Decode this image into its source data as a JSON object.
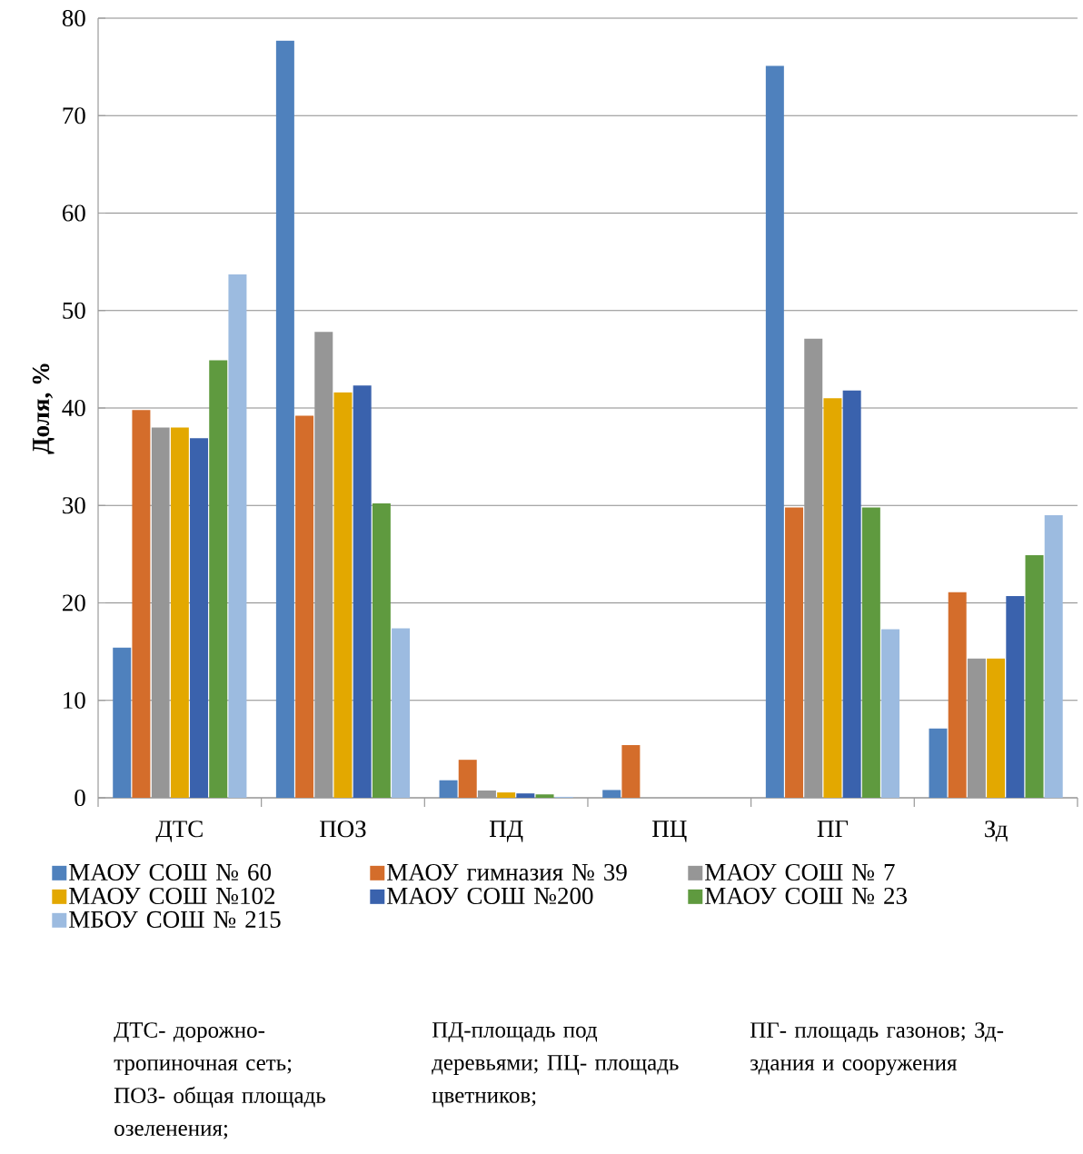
{
  "chart_data": {
    "type": "bar",
    "ylabel": "Доля, %",
    "categories": [
      "ДТС",
      "ПОЗ",
      "ПД",
      "ПЦ",
      "ПГ",
      "Зд"
    ],
    "series": [
      {
        "name": "МАОУ СОШ № 60",
        "color": "#4f81bd",
        "values": [
          15.4,
          77.7,
          1.8,
          0.8,
          75.1,
          7.1
        ]
      },
      {
        "name": "МАОУ гимназия № 39",
        "color": "#d46d2b",
        "values": [
          39.8,
          39.2,
          3.9,
          5.4,
          29.8,
          21.1
        ]
      },
      {
        "name": "МАОУ СОШ № 7",
        "color": "#969696",
        "values": [
          38.0,
          47.8,
          0.75,
          0,
          47.1,
          14.3
        ]
      },
      {
        "name": "МАОУ СОШ №102",
        "color": "#e3a800",
        "values": [
          38.0,
          41.6,
          0.55,
          0,
          41.0,
          14.3
        ]
      },
      {
        "name": "МАОУ СОШ №200",
        "color": "#3a62ad",
        "values": [
          36.9,
          42.3,
          0.45,
          0,
          41.8,
          20.7
        ]
      },
      {
        "name": "МАОУ СОШ № 23",
        "color": "#5f9a3f",
        "values": [
          44.9,
          30.2,
          0.35,
          0,
          29.8,
          24.9
        ]
      },
      {
        "name": "МБОУ СОШ № 215",
        "color": "#9cbbe0",
        "values": [
          53.7,
          17.4,
          0.1,
          0,
          17.3,
          29.0
        ]
      }
    ],
    "ylim": [
      0,
      80
    ],
    "yticks": [
      0,
      10,
      20,
      30,
      40,
      50,
      60,
      70,
      80
    ],
    "grid": "y",
    "legend": "bottom",
    "annotations": [
      "ДТС- дорожно-тропиночная сеть; ПОЗ- общая площадь озеленения;",
      "ПД-площадь под деревьями; ПЦ- площадь цветников;",
      "ПГ- площадь газонов; Зд-здания и сооружения"
    ]
  }
}
